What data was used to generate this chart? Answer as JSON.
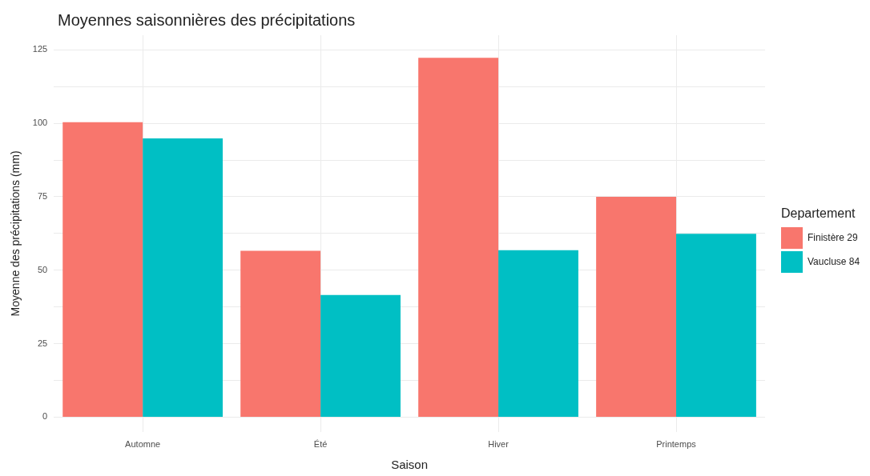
{
  "chart_data": {
    "type": "bar",
    "title": "Moyennes saisonnières des précipitations",
    "xlabel": "Saison",
    "ylabel": "Moyenne des précipitations (mm)",
    "legend_title": "Departement",
    "categories": [
      "Automne",
      "Été",
      "Hiver",
      "Printemps"
    ],
    "series": [
      {
        "name": "Finistère 29",
        "color": "#f8766d",
        "values": [
          100.4,
          56.6,
          122.3,
          75.0
        ]
      },
      {
        "name": "Vaucluse 84",
        "color": "#00bfc4",
        "values": [
          94.9,
          41.6,
          56.8,
          62.4
        ]
      }
    ],
    "ylim": [
      -5,
      130
    ],
    "yticks": [
      0,
      {
        "value": 12.5,
        "label": null
      },
      25,
      {
        "value": 37.5,
        "label": null
      },
      50,
      {
        "value": 62.5,
        "label": null
      },
      75,
      {
        "value": 87.5,
        "label": null
      },
      100,
      {
        "value": 112.5,
        "label": null
      },
      125
    ],
    "grid": true,
    "legend": "right"
  }
}
